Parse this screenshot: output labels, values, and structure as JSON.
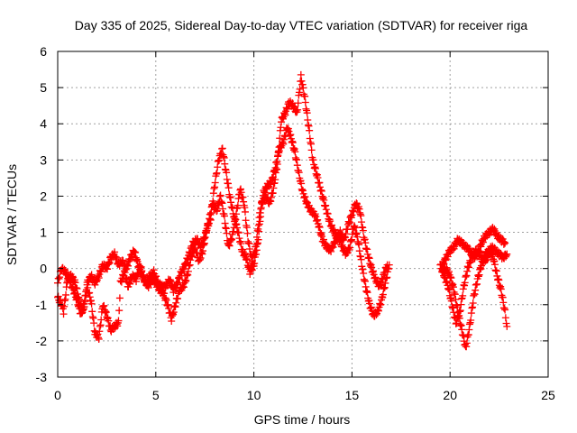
{
  "chart_data": {
    "type": "scatter",
    "title": "Day 335 of 2025, Sidereal Day-to-day VTEC variation (SDTVAR) for receiver riga",
    "xlabel": "GPS time / hours",
    "ylabel": "SDTVAR / TECUs",
    "xlim": [
      0,
      25
    ],
    "ylim": [
      -3,
      6
    ],
    "x_ticks": [
      "0",
      "5",
      "10",
      "15",
      "20",
      "25"
    ],
    "y_ticks": [
      "-3",
      "-2",
      "-1",
      "0",
      "1",
      "2",
      "3",
      "4",
      "5",
      "6"
    ],
    "grid": true,
    "marker": "+",
    "colors": {
      "series": "#ff0000",
      "grid": "#a0a0a0",
      "axis": "#000000"
    },
    "series": [
      {
        "name": "SDTVAR",
        "strands": [
          [
            [
              0.0,
              -0.4
            ],
            [
              0.1,
              -0.2
            ],
            [
              0.2,
              0.0
            ],
            [
              0.4,
              -0.1
            ],
            [
              0.6,
              -0.3
            ],
            [
              0.8,
              -0.6
            ],
            [
              1.0,
              -0.9
            ],
            [
              1.2,
              -1.3
            ],
            [
              1.4,
              -0.8
            ],
            [
              1.5,
              -0.4
            ],
            [
              1.7,
              -0.2
            ],
            [
              1.9,
              -0.4
            ],
            [
              2.1,
              -0.2
            ],
            [
              2.3,
              0.1
            ],
            [
              2.5,
              0.0
            ],
            [
              2.7,
              0.3
            ],
            [
              2.9,
              0.4
            ],
            [
              3.1,
              0.1
            ],
            [
              3.3,
              0.2
            ],
            [
              3.5,
              0.0
            ],
            [
              3.7,
              0.3
            ],
            [
              3.9,
              0.5
            ],
            [
              4.1,
              0.1
            ],
            [
              4.3,
              -0.2
            ],
            [
              4.5,
              -0.4
            ],
            [
              4.7,
              -0.2
            ],
            [
              4.9,
              -0.1
            ],
            [
              5.1,
              -0.4
            ],
            [
              5.3,
              -0.5
            ],
            [
              5.5,
              -0.5
            ],
            [
              5.7,
              -0.3
            ],
            [
              5.9,
              -0.6
            ],
            [
              6.1,
              -0.4
            ],
            [
              6.3,
              -0.1
            ],
            [
              6.5,
              0.1
            ],
            [
              6.7,
              0.4
            ],
            [
              6.9,
              0.7
            ],
            [
              7.1,
              0.8
            ],
            [
              7.3,
              0.6
            ],
            [
              7.5,
              0.9
            ],
            [
              7.7,
              1.3
            ],
            [
              7.9,
              1.8
            ],
            [
              8.1,
              1.6
            ],
            [
              8.3,
              2.0
            ],
            [
              8.5,
              1.4
            ],
            [
              8.7,
              0.6
            ],
            [
              8.9,
              0.9
            ],
            [
              9.1,
              1.5
            ],
            [
              9.3,
              2.2
            ],
            [
              9.5,
              1.8
            ],
            [
              9.7,
              0.8
            ],
            [
              9.9,
              0.2
            ],
            [
              10.1,
              0.6
            ],
            [
              10.3,
              1.5
            ],
            [
              10.5,
              2.1
            ],
            [
              10.7,
              2.3
            ],
            [
              10.9,
              2.4
            ],
            [
              11.1,
              2.8
            ],
            [
              11.3,
              3.3
            ],
            [
              11.5,
              3.5
            ],
            [
              11.7,
              3.9
            ],
            [
              11.9,
              3.6
            ],
            [
              12.1,
              3.2
            ],
            [
              12.3,
              2.6
            ],
            [
              12.5,
              2.1
            ],
            [
              12.7,
              1.8
            ],
            [
              12.9,
              1.6
            ],
            [
              13.1,
              1.5
            ],
            [
              13.3,
              1.2
            ],
            [
              13.5,
              0.8
            ],
            [
              13.7,
              0.6
            ],
            [
              13.9,
              0.5
            ],
            [
              14.1,
              0.7
            ],
            [
              14.3,
              0.9
            ],
            [
              14.5,
              0.6
            ],
            [
              14.7,
              0.4
            ],
            [
              14.9,
              0.6
            ],
            [
              15.1,
              1.2
            ],
            [
              15.3,
              0.8
            ],
            [
              15.5,
              0.1
            ],
            [
              15.7,
              -0.5
            ],
            [
              15.9,
              -1.0
            ],
            [
              16.1,
              -1.3
            ],
            [
              16.3,
              -1.2
            ],
            [
              16.5,
              -0.9
            ],
            [
              16.7,
              -0.4
            ],
            [
              16.9,
              0.1
            ]
          ],
          [
            [
              0.0,
              -0.8
            ],
            [
              0.2,
              -1.0
            ],
            [
              0.3,
              -1.2
            ],
            [
              0.5,
              -0.3
            ],
            [
              0.7,
              -0.2
            ],
            [
              0.9,
              -0.4
            ],
            [
              1.1,
              -0.9
            ],
            [
              1.3,
              -1.2
            ],
            [
              1.5,
              -0.5
            ],
            [
              1.7,
              -0.9
            ],
            [
              1.9,
              -1.8
            ],
            [
              2.1,
              -1.9
            ],
            [
              2.3,
              -1.0
            ],
            [
              2.5,
              -1.3
            ],
            [
              2.7,
              -1.7
            ],
            [
              2.9,
              -1.6
            ],
            [
              3.1,
              -1.5
            ],
            [
              3.2,
              -0.4
            ],
            [
              3.4,
              -0.1
            ],
            [
              3.6,
              -0.5
            ],
            [
              3.8,
              -0.2
            ],
            [
              4.0,
              -0.3
            ],
            [
              4.2,
              0.1
            ],
            [
              4.4,
              -0.3
            ],
            [
              4.6,
              -0.5
            ],
            [
              4.8,
              -0.3
            ],
            [
              5.0,
              -0.4
            ],
            [
              5.2,
              -0.6
            ],
            [
              5.4,
              -0.7
            ],
            [
              5.6,
              -1.0
            ],
            [
              5.8,
              -1.4
            ],
            [
              6.0,
              -1.0
            ],
            [
              6.2,
              -0.6
            ],
            [
              6.4,
              -0.5
            ],
            [
              6.6,
              -0.2
            ],
            [
              6.8,
              0.3
            ],
            [
              7.0,
              0.6
            ],
            [
              7.2,
              0.2
            ],
            [
              7.4,
              0.5
            ],
            [
              7.6,
              1.1
            ],
            [
              7.8,
              1.4
            ],
            [
              8.0,
              2.3
            ],
            [
              8.2,
              3.0
            ],
            [
              8.4,
              3.3
            ],
            [
              8.6,
              2.6
            ],
            [
              8.8,
              1.9
            ],
            [
              9.0,
              1.4
            ],
            [
              9.2,
              1.0
            ],
            [
              9.4,
              0.5
            ],
            [
              9.6,
              0.3
            ],
            [
              9.8,
              -0.1
            ],
            [
              10.0,
              0.1
            ],
            [
              10.2,
              0.7
            ],
            [
              10.4,
              1.8
            ],
            [
              10.6,
              2.0
            ],
            [
              10.8,
              1.8
            ],
            [
              11.0,
              2.2
            ],
            [
              11.2,
              2.9
            ],
            [
              11.4,
              4.1
            ],
            [
              11.6,
              4.3
            ],
            [
              11.8,
              4.6
            ],
            [
              12.0,
              4.5
            ],
            [
              12.2,
              4.3
            ],
            [
              12.4,
              5.3
            ],
            [
              12.6,
              4.7
            ],
            [
              12.8,
              3.9
            ],
            [
              13.0,
              3.0
            ],
            [
              13.2,
              2.6
            ],
            [
              13.4,
              2.2
            ],
            [
              13.6,
              1.8
            ],
            [
              13.8,
              1.4
            ],
            [
              14.0,
              1.1
            ],
            [
              14.2,
              0.9
            ],
            [
              14.4,
              1.0
            ],
            [
              14.6,
              0.8
            ],
            [
              14.8,
              1.2
            ],
            [
              15.0,
              1.5
            ],
            [
              15.2,
              1.8
            ],
            [
              15.4,
              1.6
            ],
            [
              15.6,
              0.9
            ],
            [
              15.8,
              0.4
            ],
            [
              16.0,
              0.0
            ],
            [
              16.2,
              -0.3
            ],
            [
              16.4,
              -0.5
            ],
            [
              16.6,
              -0.2
            ],
            [
              16.8,
              0.1
            ]
          ],
          [
            [
              19.6,
              0.1
            ],
            [
              19.8,
              0.3
            ],
            [
              20.0,
              0.5
            ],
            [
              20.2,
              0.6
            ],
            [
              20.4,
              0.8
            ],
            [
              20.6,
              0.7
            ],
            [
              20.8,
              0.6
            ],
            [
              21.0,
              0.5
            ],
            [
              21.2,
              0.3
            ],
            [
              21.4,
              0.4
            ],
            [
              21.6,
              0.7
            ],
            [
              21.8,
              0.9
            ],
            [
              22.0,
              1.0
            ],
            [
              22.2,
              1.1
            ],
            [
              22.4,
              0.9
            ],
            [
              22.6,
              0.8
            ],
            [
              22.8,
              0.7
            ]
          ],
          [
            [
              19.5,
              0.1
            ],
            [
              19.7,
              -0.2
            ],
            [
              19.9,
              -0.5
            ],
            [
              20.1,
              -1.0
            ],
            [
              20.3,
              -1.5
            ],
            [
              20.5,
              -1.2
            ],
            [
              20.7,
              -0.5
            ],
            [
              20.9,
              0.0
            ],
            [
              21.1,
              0.3
            ],
            [
              21.3,
              0.5
            ],
            [
              21.5,
              0.4
            ],
            [
              21.7,
              0.2
            ],
            [
              21.9,
              0.3
            ],
            [
              22.1,
              0.6
            ],
            [
              22.3,
              0.5
            ],
            [
              22.5,
              0.4
            ],
            [
              22.7,
              0.3
            ],
            [
              22.9,
              0.4
            ]
          ],
          [
            [
              19.6,
              -0.1
            ],
            [
              19.8,
              0.0
            ],
            [
              20.0,
              -0.2
            ],
            [
              20.2,
              -0.6
            ],
            [
              20.4,
              -1.2
            ],
            [
              20.6,
              -1.7
            ],
            [
              20.8,
              -2.2
            ],
            [
              21.0,
              -1.6
            ],
            [
              21.2,
              -0.8
            ],
            [
              21.4,
              -0.3
            ],
            [
              21.6,
              0.1
            ],
            [
              21.8,
              0.4
            ],
            [
              22.0,
              0.5
            ],
            [
              22.2,
              0.3
            ],
            [
              22.4,
              -0.2
            ],
            [
              22.6,
              -0.6
            ],
            [
              22.8,
              -1.2
            ],
            [
              22.9,
              -1.6
            ]
          ]
        ]
      }
    ]
  }
}
